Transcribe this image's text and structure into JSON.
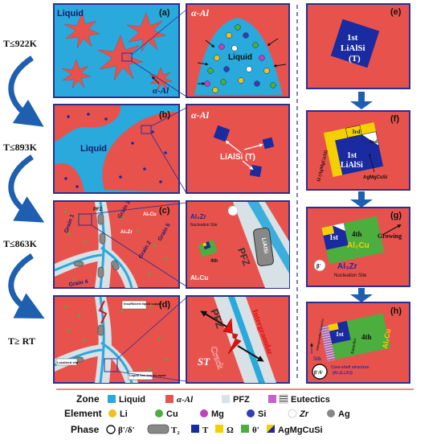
{
  "temperatures": [
    "T≤922K",
    "T≤893K",
    "T≤863K",
    "T≥ RT"
  ],
  "panels": {
    "a": {
      "label": "(a)",
      "liquid": "Liquid",
      "alpha_al": "α-Al",
      "inset_alpha": "α-Al",
      "inset_liquid": "Liquid"
    },
    "b": {
      "label": "(b)",
      "liquid": "Liquid",
      "inset_alpha": "α-Al",
      "inset_liali": "LiAlSi (T)"
    },
    "c": {
      "label": "(c)",
      "grains": [
        "Grain 1",
        "Grain 2",
        "Grain 3",
        "Grain 4",
        "Grain 5"
      ],
      "ptz": "PFZ",
      "al3zr_small": "Al₃Zr",
      "al2cu_small": "Al₂Cu",
      "inset_al3zr": "Al₃Zr",
      "inset_nucleation": "Nucleation Site",
      "inset_pfz": "PFZ",
      "inset_al2cu": "Al₂Cu",
      "inset_liali": "LiAlSi",
      "inset_4th": "4th"
    },
    "d": {
      "label": "(d)",
      "insufficient": "Insufficient liquid supply",
      "localized": "Localized slip",
      "liquid_film": "Liquid film tearing apart",
      "inset_pfz": "PFZ",
      "inset_crack": "Crack",
      "inset_intergranular": "Intergranular",
      "inset_st": "ST"
    },
    "e": {
      "label": "(e)",
      "title_line1": "1st",
      "title_line2": "LiAlSi",
      "title_line3": "(T)"
    },
    "f": {
      "label": "(f)",
      "first": "1st",
      "liali": "LiAlSi",
      "third": "3rd",
      "omega": "Ω (AgMgCuAl)",
      "second": "2nd",
      "agmgcusi": "AgMgCuSi"
    },
    "g": {
      "label": "(g)",
      "first": "1st",
      "fourth": "4th",
      "al2cu": "Al₂Cu",
      "growing": "Growing",
      "beta": "β'",
      "al3zr": "Al₃Zr",
      "nucleation": "Nucleation Site"
    },
    "h": {
      "label": "(h)",
      "first": "1st",
      "fourth": "4th",
      "al2cu": "Al₂Cu",
      "fifth": "5th",
      "intergranular_eutectics": "Intergranular Eutectics",
      "eutectics": "Eutectics",
      "core_shell": "Core-shell structure",
      "core_shell_sub": "(Al₃(Li,Zr))",
      "beta": "β'/δ'"
    }
  },
  "legend": {
    "zone_title": "Zone",
    "zones": [
      {
        "label": "Liquid",
        "color": "#29a9dc"
      },
      {
        "label": "α-Al",
        "color": "#e8524c"
      },
      {
        "label": "PFZ",
        "color": "#d7e1e6"
      },
      {
        "label": "Eutectics",
        "color": "#c860cc"
      }
    ],
    "element_title": "Element",
    "elements": [
      {
        "label": "Li",
        "color": "#f0c020"
      },
      {
        "label": "Cu",
        "color": "#4cae3e"
      },
      {
        "label": "Mg",
        "color": "#c040c0"
      },
      {
        "label": "Si",
        "color": "#3040b0"
      },
      {
        "label": "Zr",
        "color": "#ffffff"
      },
      {
        "label": "Ag",
        "color": "#888888"
      }
    ],
    "phase_title": "Phase",
    "phases": [
      {
        "label": "β'/δ'"
      },
      {
        "label": "T₂"
      },
      {
        "label": "T"
      },
      {
        "label": "Ω"
      },
      {
        "label": "θ'"
      },
      {
        "label": "AgMgCuSi"
      }
    ]
  },
  "colors": {
    "liquid": "#29a9dc",
    "alpha_al": "#e8524c",
    "frame": "#2a2f8f",
    "arrow": "#1e5fb0",
    "pfz": "#d7e1e6",
    "t_phase": "#1a2aa0",
    "omega": "#f5d000",
    "theta": "#4cae3e"
  }
}
